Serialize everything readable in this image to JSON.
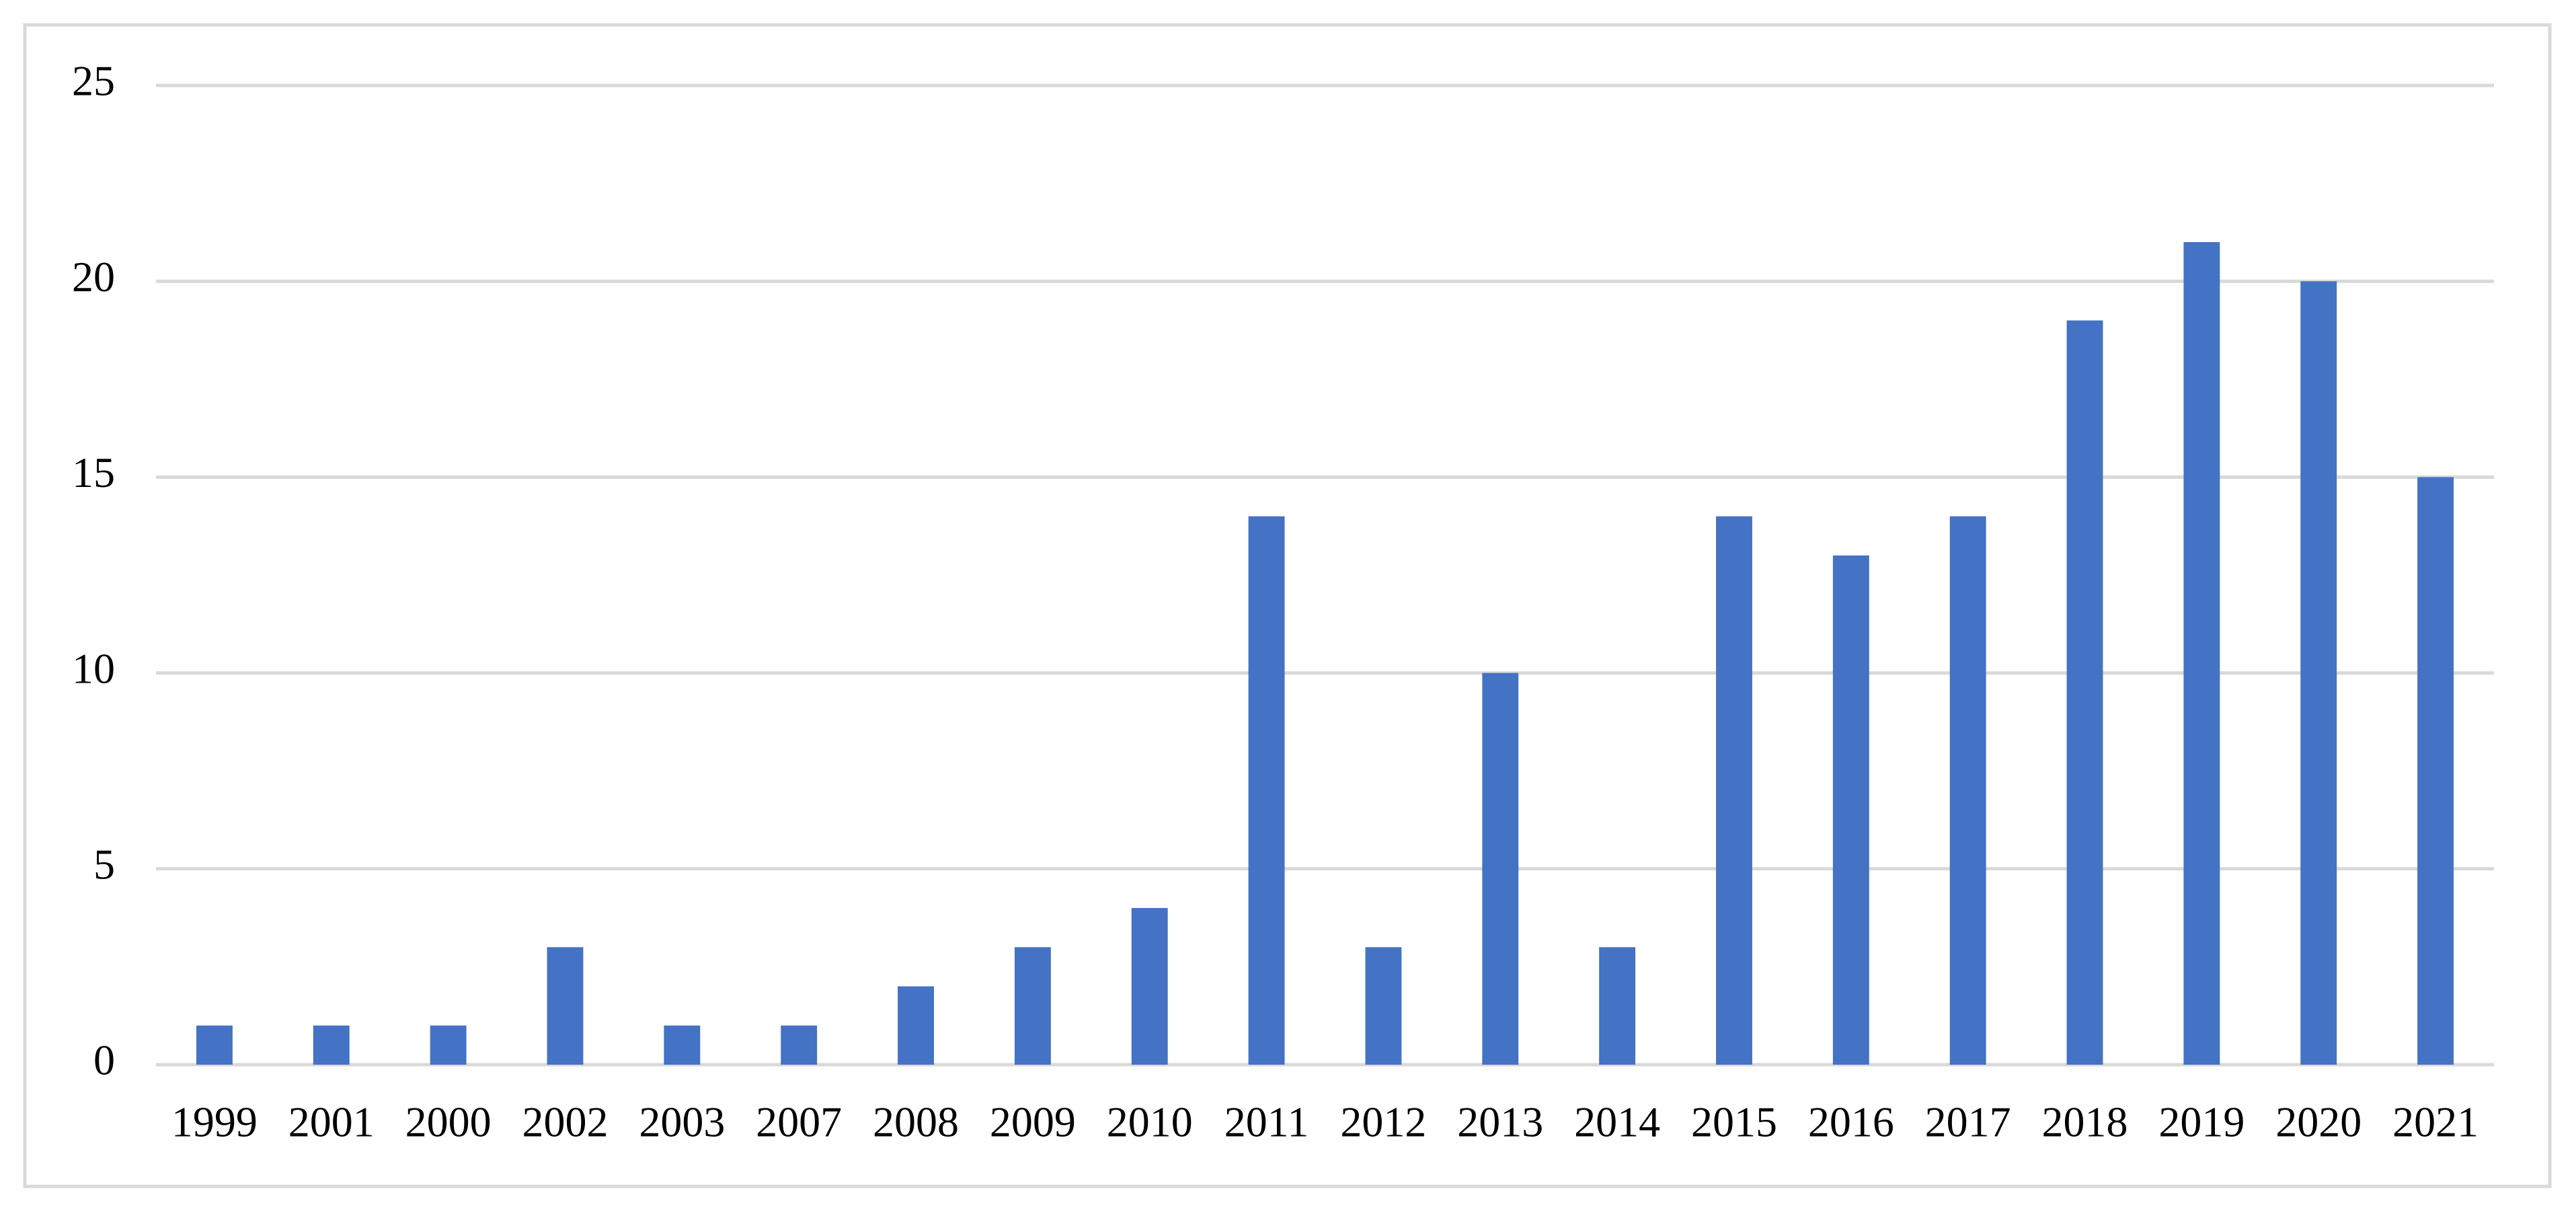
{
  "chart_data": {
    "type": "bar",
    "categories": [
      "1999",
      "2001",
      "2000",
      "2002",
      "2003",
      "2007",
      "2008",
      "2009",
      "2010",
      "2011",
      "2012",
      "2013",
      "2014",
      "2015",
      "2016",
      "2017",
      "2018",
      "2019",
      "2020",
      "2021"
    ],
    "values": [
      1,
      1,
      1,
      3,
      1,
      1,
      2,
      3,
      4,
      14,
      3,
      10,
      3,
      14,
      13,
      14,
      19,
      21,
      20,
      15
    ],
    "color": "#4472c4",
    "ylim": [
      0,
      25
    ],
    "yticks": [
      0,
      5,
      10,
      15,
      20,
      25
    ],
    "grid": true
  }
}
